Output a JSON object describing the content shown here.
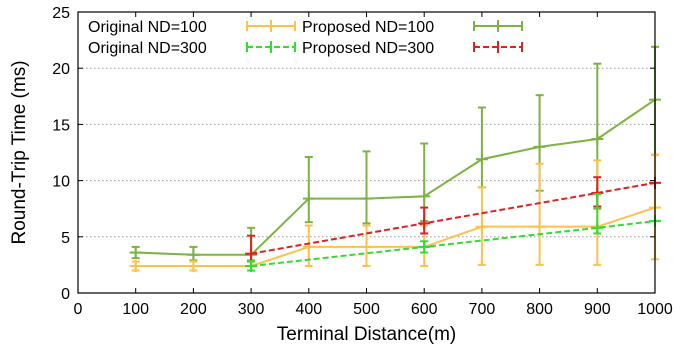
{
  "chart_data": {
    "type": "line",
    "xlabel": "Terminal Distance(m)",
    "ylabel": "Round-Trip Time (ms)",
    "xlim": [
      0,
      1000
    ],
    "ylim": [
      0,
      25
    ],
    "xticks": [
      0,
      100,
      200,
      300,
      400,
      500,
      600,
      700,
      800,
      900,
      1000
    ],
    "yticks": [
      0,
      5,
      10,
      15,
      20,
      25
    ],
    "grid": "horizontal-dotted",
    "legend_position": "top-left",
    "series": [
      {
        "name": "Original ND=100",
        "color": "#ffc04d",
        "dash": "solid",
        "x": [
          100,
          200,
          300,
          400,
          500,
          600,
          700,
          800,
          900,
          1000
        ],
        "y": [
          2.4,
          2.4,
          2.4,
          4.1,
          4.1,
          4.1,
          5.9,
          5.9,
          5.9,
          7.6
        ],
        "err_low": [
          2.0,
          2.0,
          2.0,
          2.4,
          2.4,
          2.4,
          2.5,
          2.5,
          2.5,
          3.0
        ],
        "err_high": [
          2.8,
          2.8,
          2.8,
          6.0,
          6.0,
          6.0,
          9.4,
          11.5,
          11.8,
          12.3
        ]
      },
      {
        "name": "Proposed ND=100",
        "color": "#7cb342",
        "dash": "solid",
        "x": [
          100,
          200,
          300,
          400,
          500,
          600,
          700,
          800,
          900,
          1000
        ],
        "y": [
          3.6,
          3.4,
          3.4,
          8.4,
          8.4,
          8.6,
          11.9,
          13.0,
          13.7,
          17.2
        ],
        "err_low": [
          3.1,
          2.9,
          2.9,
          6.3,
          6.2,
          6.4,
          9.4,
          9.1,
          7.5,
          12.3
        ],
        "err_high": [
          4.1,
          4.1,
          5.8,
          12.1,
          12.6,
          13.3,
          16.5,
          17.6,
          20.4,
          21.9
        ]
      },
      {
        "name": "Original ND=300",
        "color": "#33dd33",
        "dash": "dashed",
        "x": [
          300,
          600,
          900,
          1000
        ],
        "y": [
          2.4,
          4.1,
          5.8,
          6.4
        ],
        "err_low": [
          2.0,
          3.6,
          5.3,
          6.4
        ],
        "err_high": [
          2.8,
          4.6,
          8.8,
          6.4
        ]
      },
      {
        "name": "Proposed ND=300",
        "color": "#dd2222",
        "dash": "dashed",
        "x": [
          300,
          600,
          900,
          1000
        ],
        "y": [
          3.5,
          6.2,
          8.9,
          9.8
        ],
        "err_low": [
          2.8,
          5.3,
          7.7,
          9.8
        ],
        "err_high": [
          5.1,
          7.6,
          10.3,
          9.8
        ]
      }
    ]
  }
}
